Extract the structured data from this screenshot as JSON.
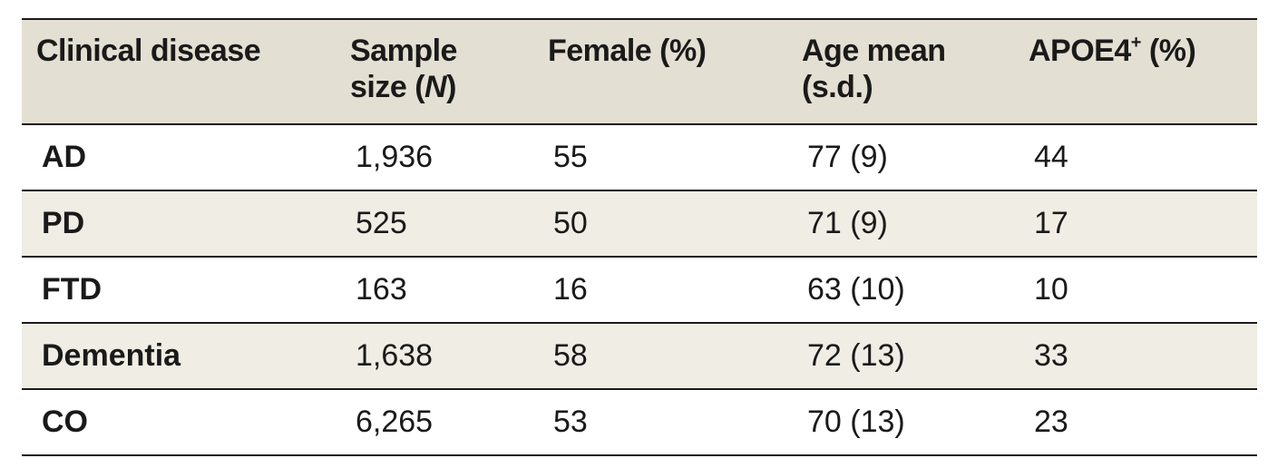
{
  "table": {
    "headers": {
      "clinical_disease": "Clinical disease",
      "sample_size_line1": "Sample",
      "sample_size_line2_a": "size (",
      "sample_size_line2_n": "N",
      "sample_size_line2_b": ")",
      "female": "Female (%)",
      "age_line1": "Age mean",
      "age_line2": "(s.d.)",
      "apoe4_a": "APOE4",
      "apoe4_sup": "+",
      "apoe4_b": " (%)"
    },
    "rows": [
      {
        "disease": "AD",
        "sample_size": "1,936",
        "female": "55",
        "age": "77 (9)",
        "apoe4": "44"
      },
      {
        "disease": "PD",
        "sample_size": "525",
        "female": "50",
        "age": "71 (9)",
        "apoe4": "17"
      },
      {
        "disease": "FTD",
        "sample_size": "163",
        "female": "16",
        "age": "63 (10)",
        "apoe4": "10"
      },
      {
        "disease": "Dementia",
        "sample_size": "1,638",
        "female": "58",
        "age": "72 (13)",
        "apoe4": "33"
      },
      {
        "disease": "CO",
        "sample_size": "6,265",
        "female": "53",
        "age": "70 (13)",
        "apoe4": "23"
      }
    ]
  }
}
